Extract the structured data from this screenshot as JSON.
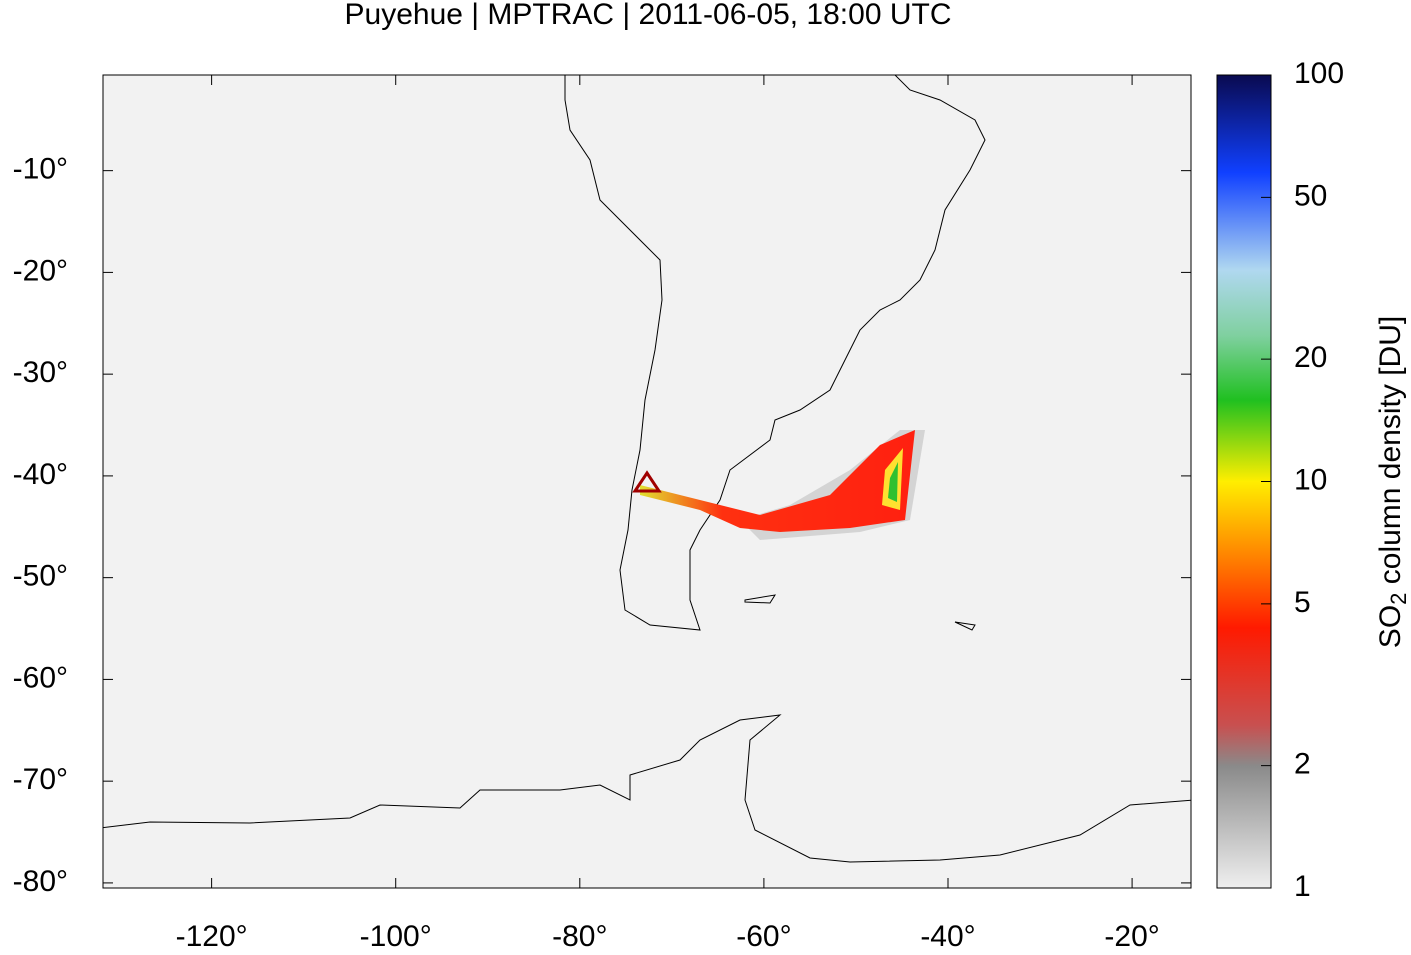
{
  "chart_data": {
    "type": "map",
    "title": "Puyehue | MPTRAC | 2011-06-05, 18:00 UTC",
    "xlim": [
      -131.8,
      -13.6
    ],
    "ylim": [
      -80.5,
      -0.6
    ],
    "xticks": [
      {
        "value": -120,
        "label": "-120°"
      },
      {
        "value": -100,
        "label": "-100°"
      },
      {
        "value": -80,
        "label": "-80°"
      },
      {
        "value": -60,
        "label": "-60°"
      },
      {
        "value": -40,
        "label": "-40°"
      },
      {
        "value": -20,
        "label": "-20°"
      }
    ],
    "yticks": [
      {
        "value": -10,
        "label": "-10°"
      },
      {
        "value": -20,
        "label": "-20°"
      },
      {
        "value": -30,
        "label": "-30°"
      },
      {
        "value": -40,
        "label": "-40°"
      },
      {
        "value": -50,
        "label": "-50°"
      },
      {
        "value": -60,
        "label": "-60°"
      },
      {
        "value": -70,
        "label": "-70°"
      },
      {
        "value": -80,
        "label": "-80°"
      }
    ],
    "colorbar": {
      "log_scale": true,
      "lim": [
        1,
        100
      ],
      "ticks": [
        1,
        2,
        5,
        10,
        20,
        50,
        100
      ],
      "label": {
        "main": "SO",
        "sub": "2",
        "rest": " column density [DU]"
      }
    }
  }
}
